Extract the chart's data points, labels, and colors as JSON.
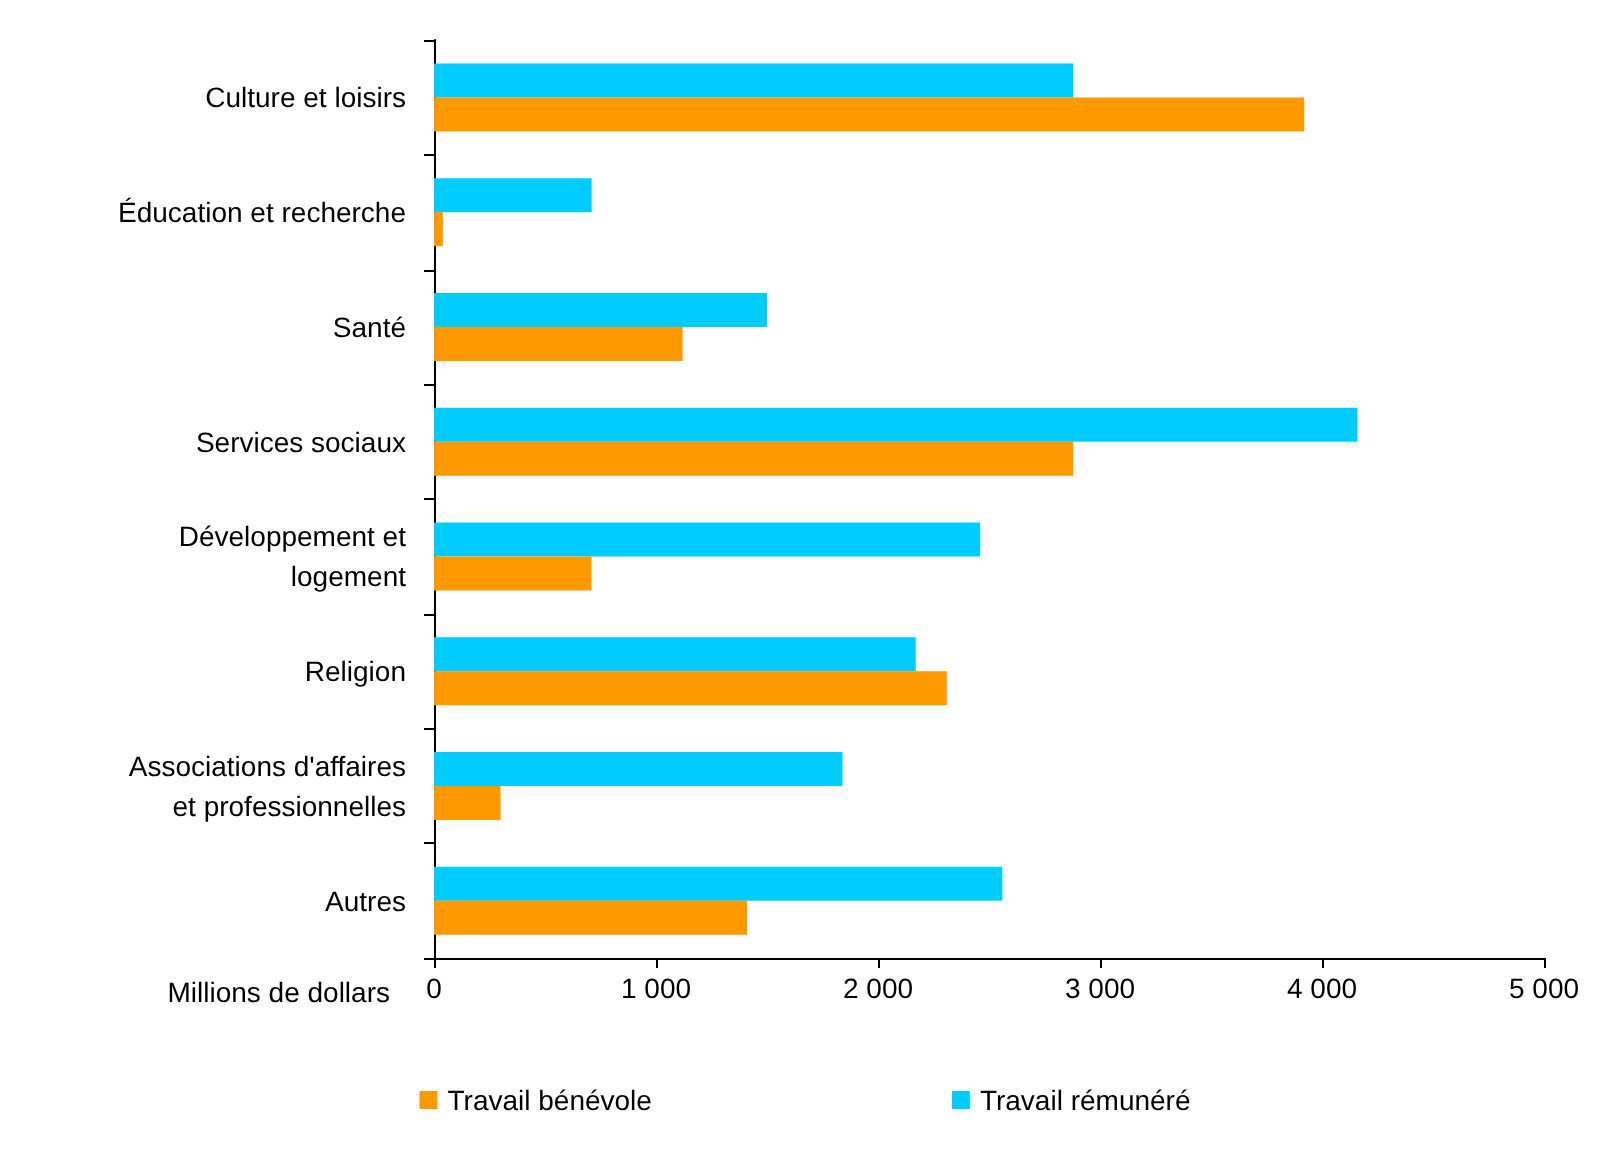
{
  "chart_data": {
    "type": "bar",
    "orientation": "horizontal",
    "xlabel": "Millions de dollars",
    "categories": [
      "Culture et loisirs",
      "Éducation et recherche",
      "Santé",
      "Services sociaux",
      "Développement et\nlogement",
      "Religion",
      "Associations d'affaires\net professionnelles",
      "Autres"
    ],
    "series": [
      {
        "name": "Travail bénévole",
        "color": "#ff9900",
        "values": [
          3920,
          40,
          1120,
          2880,
          710,
          2310,
          300,
          1410
        ]
      },
      {
        "name": "Travail rémunéré",
        "color": "#00ccff",
        "values": [
          2880,
          710,
          1500,
          4160,
          2460,
          2170,
          1840,
          2560
        ]
      }
    ],
    "xlim": [
      0,
      5000
    ],
    "xticks": [
      0,
      {
        "value": 1000,
        "label": "1 000"
      },
      {
        "value": 2000,
        "label": "2 000"
      },
      {
        "value": 3000,
        "label": "3 000"
      },
      {
        "value": 4000,
        "label": "4 000"
      },
      {
        "value": 5000,
        "label": "5 000"
      }
    ],
    "grid": false,
    "legend": "bottom"
  }
}
